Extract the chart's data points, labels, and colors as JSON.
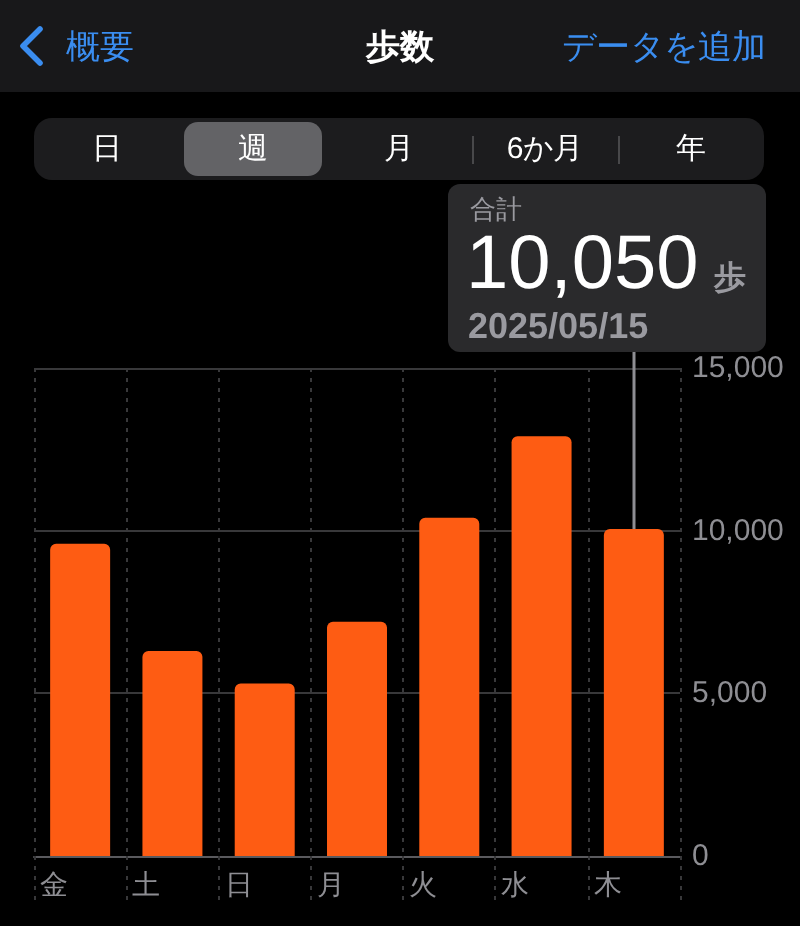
{
  "chart_data": {
    "type": "bar",
    "title": "歩数",
    "categories": [
      "金",
      "土",
      "日",
      "月",
      "火",
      "水",
      "木"
    ],
    "values": [
      9600,
      6300,
      5300,
      7200,
      10400,
      12900,
      10050
    ],
    "color": "#fe5c13",
    "ylim": [
      0,
      15000
    ],
    "yticks": [
      0,
      {
        "value": 5000,
        "label": "5,000"
      },
      {
        "value": 10000,
        "label": "10,000"
      },
      {
        "value": 15000,
        "label": "15,000"
      }
    ],
    "grid": true,
    "annotations": [
      "概要",
      "データを追加",
      "日",
      "週",
      "月",
      "6か月",
      "年",
      "合計",
      {
        "text": "10,050 歩",
        "x": "木",
        "y": 10050
      },
      "2025/05/15"
    ]
  }
}
